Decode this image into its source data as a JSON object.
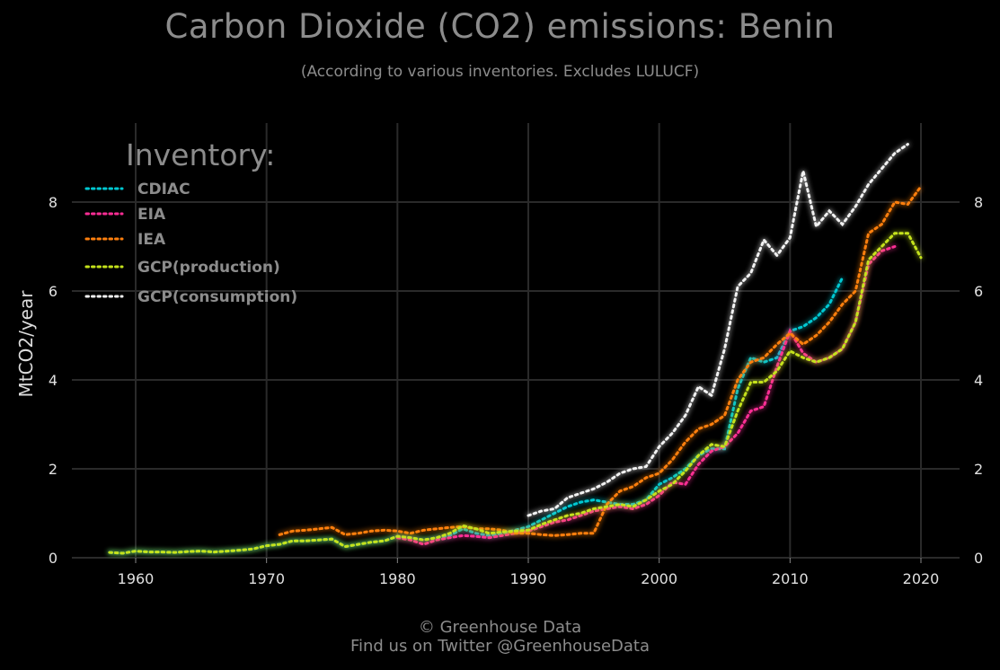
{
  "title": "Carbon Dioxide (CO2) emissions: Benin",
  "subtitle": "(According to various inventories. Excludes LULUCF)",
  "footer": {
    "line1": "© Greenhouse Data",
    "line2": "Find us on Twitter @GreenhouseData"
  },
  "chart_data": {
    "type": "line",
    "title": "Carbon Dioxide (CO2) emissions: Benin",
    "subtitle": "(According to various inventories. Excludes LULUCF)",
    "xlabel": "",
    "ylabel": "MtCO2/year",
    "xlim": [
      1955,
      2023
    ],
    "ylim": [
      0,
      9.7
    ],
    "xticks": [
      1960,
      1970,
      1980,
      1990,
      2000,
      2010,
      2020
    ],
    "yticks": [
      0,
      2,
      4,
      6,
      8
    ],
    "grid": true,
    "legend_title": "Inventory:",
    "legend_position": "top-left",
    "series": [
      {
        "name": "CDIAC",
        "color": "#00c8d2",
        "x": [
          1958,
          1959,
          1960,
          1961,
          1962,
          1963,
          1964,
          1965,
          1966,
          1967,
          1968,
          1969,
          1970,
          1971,
          1972,
          1973,
          1974,
          1975,
          1976,
          1977,
          1978,
          1979,
          1980,
          1981,
          1982,
          1983,
          1984,
          1985,
          1986,
          1987,
          1988,
          1989,
          1990,
          1991,
          1992,
          1993,
          1994,
          1995,
          1996,
          1997,
          1998,
          1999,
          2000,
          2001,
          2002,
          2003,
          2004,
          2005,
          2006,
          2007,
          2008,
          2009,
          2010,
          2011,
          2012,
          2013,
          2014
        ],
        "y": [
          0.12,
          0.1,
          0.15,
          0.13,
          0.13,
          0.12,
          0.14,
          0.15,
          0.13,
          0.15,
          0.17,
          0.2,
          0.27,
          0.3,
          0.38,
          0.38,
          0.4,
          0.42,
          0.25,
          0.3,
          0.35,
          0.38,
          0.48,
          0.45,
          0.4,
          0.45,
          0.5,
          0.65,
          0.55,
          0.5,
          0.55,
          0.62,
          0.7,
          0.85,
          1.0,
          1.15,
          1.25,
          1.3,
          1.25,
          1.2,
          1.2,
          1.3,
          1.65,
          1.8,
          2.0,
          2.3,
          2.45,
          2.45,
          3.8,
          4.5,
          4.4,
          4.5,
          5.1,
          5.2,
          5.4,
          5.7,
          6.3
        ]
      },
      {
        "name": "EIA",
        "color": "#ff2d95",
        "x": [
          1980,
          1981,
          1982,
          1983,
          1984,
          1985,
          1986,
          1987,
          1988,
          1989,
          1990,
          1991,
          1992,
          1993,
          1994,
          1995,
          1996,
          1997,
          1998,
          1999,
          2000,
          2001,
          2002,
          2003,
          2004,
          2005,
          2006,
          2007,
          2008,
          2009,
          2010,
          2011,
          2012,
          2013,
          2014,
          2015,
          2016,
          2017,
          2018
        ],
        "y": [
          0.45,
          0.4,
          0.3,
          0.4,
          0.45,
          0.5,
          0.48,
          0.45,
          0.5,
          0.55,
          0.6,
          0.7,
          0.8,
          0.85,
          0.95,
          1.05,
          1.1,
          1.15,
          1.1,
          1.2,
          1.4,
          1.7,
          1.65,
          2.1,
          2.4,
          2.5,
          2.8,
          3.3,
          3.4,
          4.3,
          5.1,
          4.6,
          4.4,
          4.5,
          4.7,
          5.3,
          6.6,
          6.9,
          7.0
        ]
      },
      {
        "name": "IEA",
        "color": "#ff7f0e",
        "x": [
          1971,
          1972,
          1973,
          1974,
          1975,
          1976,
          1977,
          1978,
          1979,
          1980,
          1981,
          1982,
          1983,
          1984,
          1985,
          1986,
          1987,
          1988,
          1989,
          1990,
          1991,
          1992,
          1993,
          1994,
          1995,
          1996,
          1997,
          1998,
          1999,
          2000,
          2001,
          2002,
          2003,
          2004,
          2005,
          2006,
          2007,
          2008,
          2009,
          2010,
          2011,
          2012,
          2013,
          2014,
          2015,
          2016,
          2017,
          2018,
          2019,
          2020
        ],
        "y": [
          0.52,
          0.6,
          0.62,
          0.65,
          0.68,
          0.52,
          0.55,
          0.6,
          0.62,
          0.6,
          0.55,
          0.62,
          0.65,
          0.68,
          0.7,
          0.65,
          0.65,
          0.62,
          0.55,
          0.55,
          0.52,
          0.5,
          0.52,
          0.55,
          0.55,
          1.2,
          1.5,
          1.6,
          1.8,
          1.9,
          2.2,
          2.6,
          2.9,
          3.0,
          3.2,
          4.0,
          4.4,
          4.5,
          4.8,
          5.05,
          4.8,
          5.0,
          5.3,
          5.7,
          6.0,
          7.3,
          7.5,
          8.0,
          7.95,
          8.35
        ]
      },
      {
        "name": "GCP(production)",
        "color": "#c5e21b",
        "x": [
          1958,
          1959,
          1960,
          1961,
          1962,
          1963,
          1964,
          1965,
          1966,
          1967,
          1968,
          1969,
          1970,
          1971,
          1972,
          1973,
          1974,
          1975,
          1976,
          1977,
          1978,
          1979,
          1980,
          1981,
          1982,
          1983,
          1984,
          1985,
          1986,
          1987,
          1988,
          1989,
          1990,
          1991,
          1992,
          1993,
          1994,
          1995,
          1996,
          1997,
          1998,
          1999,
          2000,
          2001,
          2002,
          2003,
          2004,
          2005,
          2006,
          2007,
          2008,
          2009,
          2010,
          2011,
          2012,
          2013,
          2014,
          2015,
          2016,
          2017,
          2018,
          2019,
          2020
        ],
        "y": [
          0.12,
          0.1,
          0.15,
          0.13,
          0.13,
          0.12,
          0.14,
          0.15,
          0.13,
          0.15,
          0.17,
          0.2,
          0.27,
          0.3,
          0.38,
          0.38,
          0.4,
          0.42,
          0.25,
          0.3,
          0.35,
          0.38,
          0.48,
          0.45,
          0.4,
          0.45,
          0.55,
          0.72,
          0.65,
          0.55,
          0.58,
          0.6,
          0.62,
          0.75,
          0.85,
          0.95,
          1.0,
          1.1,
          1.15,
          1.2,
          1.15,
          1.3,
          1.5,
          1.65,
          1.95,
          2.3,
          2.55,
          2.5,
          3.3,
          3.95,
          3.95,
          4.2,
          4.65,
          4.5,
          4.4,
          4.5,
          4.7,
          5.3,
          6.7,
          7.0,
          7.3,
          7.3,
          6.75
        ]
      },
      {
        "name": "GCP(consumption)",
        "color": "#f2f2f2",
        "x": [
          1990,
          1991,
          1992,
          1993,
          1994,
          1995,
          1996,
          1997,
          1998,
          1999,
          2000,
          2001,
          2002,
          2003,
          2004,
          2005,
          2006,
          2007,
          2008,
          2009,
          2010,
          2011,
          2012,
          2013,
          2014,
          2015,
          2016,
          2017,
          2018,
          2019
        ],
        "y": [
          0.95,
          1.05,
          1.1,
          1.35,
          1.45,
          1.55,
          1.7,
          1.9,
          2.0,
          2.05,
          2.5,
          2.8,
          3.2,
          3.85,
          3.65,
          4.7,
          6.1,
          6.4,
          7.15,
          6.8,
          7.2,
          8.7,
          7.45,
          7.8,
          7.5,
          7.9,
          8.4,
          8.75,
          9.1,
          9.3
        ]
      }
    ]
  }
}
